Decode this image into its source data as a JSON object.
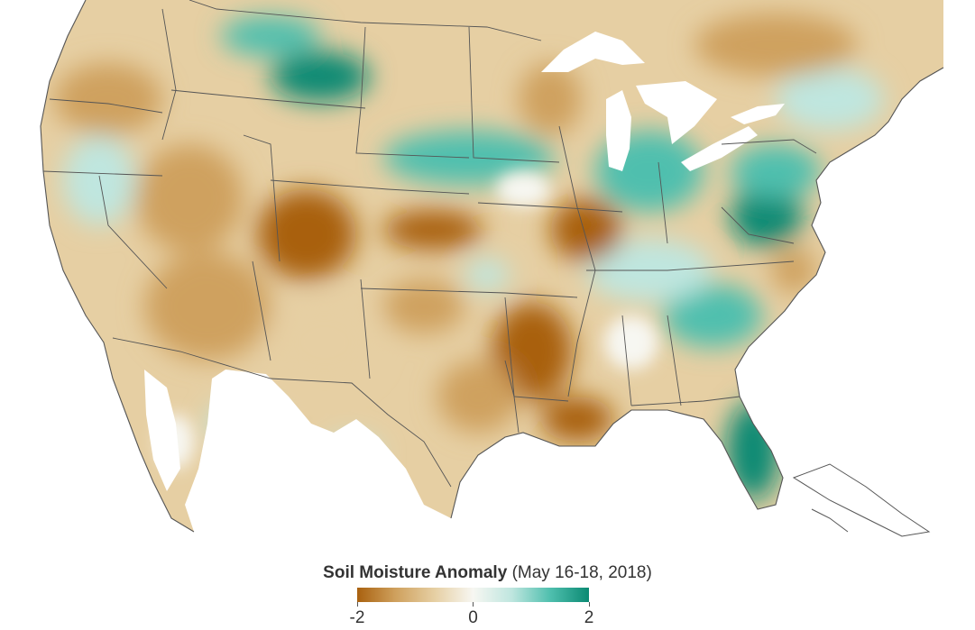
{
  "legend": {
    "title": "Soil Moisture Anomaly",
    "subtitle": "(May 16-18, 2018)",
    "ticks": [
      {
        "label": "-2",
        "value": -2
      },
      {
        "label": "0",
        "value": 0
      },
      {
        "label": "2",
        "value": 2
      }
    ],
    "range": [
      -2,
      2
    ],
    "colors": {
      "dry_strong": "#a9610f",
      "dry_mid": "#cfa15e",
      "dry_light": "#e6cfa3",
      "neutral": "#f7f7f2",
      "wet_light": "#bfe6df",
      "wet_mid": "#4fbfae",
      "wet_strong": "#0b8a73"
    }
  },
  "map": {
    "land_base_color": "#e6cfa3",
    "water_color": "#ffffff",
    "border_color": "#555555"
  }
}
